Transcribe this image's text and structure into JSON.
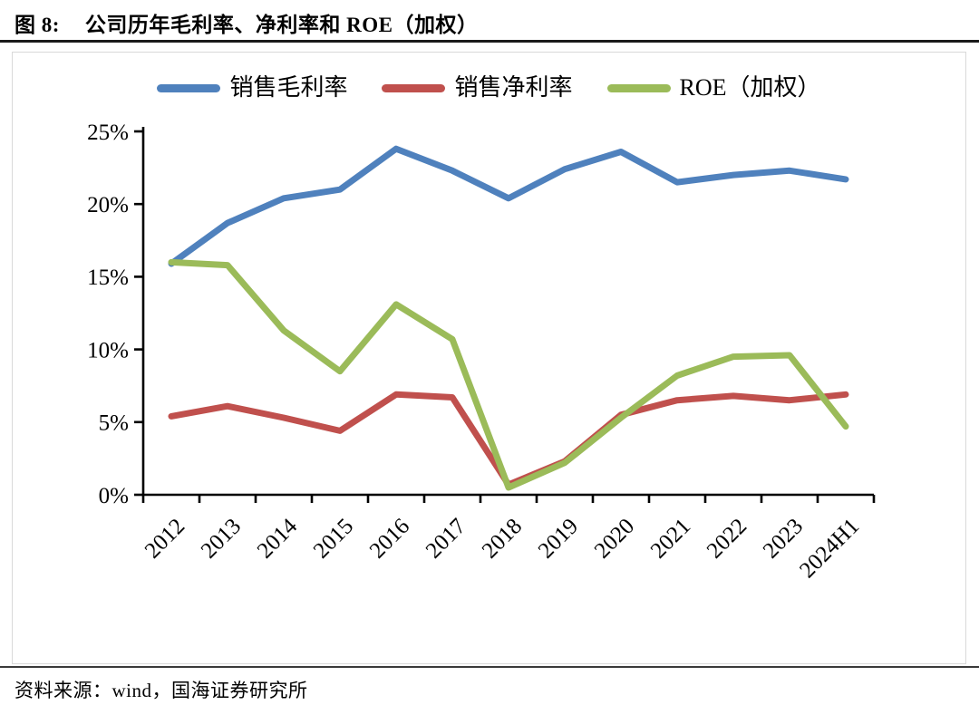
{
  "page": {
    "title_prefix": "图 8:",
    "title": "公司历年毛利率、净利率和 ROE（加权）",
    "source": "资料来源：wind，国海证券研究所"
  },
  "chart_data": {
    "type": "line",
    "title": "公司历年毛利率、净利率和 ROE（加权）",
    "categories": [
      "2012",
      "2013",
      "2014",
      "2015",
      "2016",
      "2017",
      "2018",
      "2019",
      "2020",
      "2021",
      "2022",
      "2023",
      "2024H1"
    ],
    "series": [
      {
        "name": "销售毛利率",
        "color": "#4F81BD",
        "values": [
          15.9,
          18.7,
          20.4,
          21.0,
          23.8,
          22.3,
          20.4,
          22.4,
          23.6,
          21.5,
          22.0,
          22.3,
          21.7
        ]
      },
      {
        "name": "销售净利率",
        "color": "#C0504D",
        "values": [
          5.4,
          6.1,
          5.3,
          4.4,
          6.9,
          6.7,
          0.7,
          2.3,
          5.5,
          6.5,
          6.8,
          6.5,
          6.9
        ]
      },
      {
        "name": "ROE（加权）",
        "color": "#9BBB59",
        "values": [
          16.0,
          15.8,
          11.3,
          8.5,
          13.1,
          10.7,
          0.5,
          2.2,
          5.3,
          8.2,
          9.5,
          9.6,
          4.7
        ]
      }
    ],
    "xlabel": "",
    "ylabel": "",
    "ylim": [
      0,
      25
    ],
    "ytick_values": [
      0,
      5,
      10,
      15,
      20,
      25
    ],
    "ytick_labels": [
      "0%",
      "5%",
      "10%",
      "15%",
      "20%",
      "25%"
    ],
    "x_label_rotation": -45,
    "grid": false,
    "legend_position": "top"
  }
}
